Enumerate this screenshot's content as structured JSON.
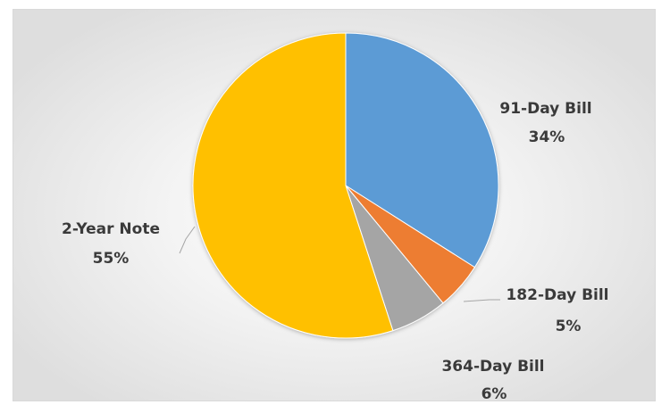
{
  "chart_data": {
    "type": "pie",
    "title": "",
    "categories": [
      "91-Day Bill",
      "182-Day Bill",
      "364-Day Bill",
      "2-Year Note"
    ],
    "values": [
      34,
      5,
      6,
      55
    ],
    "value_labels": [
      "34%",
      "5%",
      "6%",
      "55%"
    ],
    "colors": [
      "#5B9BD5",
      "#ED7D31",
      "#A5A5A5",
      "#FFC000"
    ],
    "legend": "none",
    "start_angle_deg": 0,
    "direction": "clockwise"
  }
}
